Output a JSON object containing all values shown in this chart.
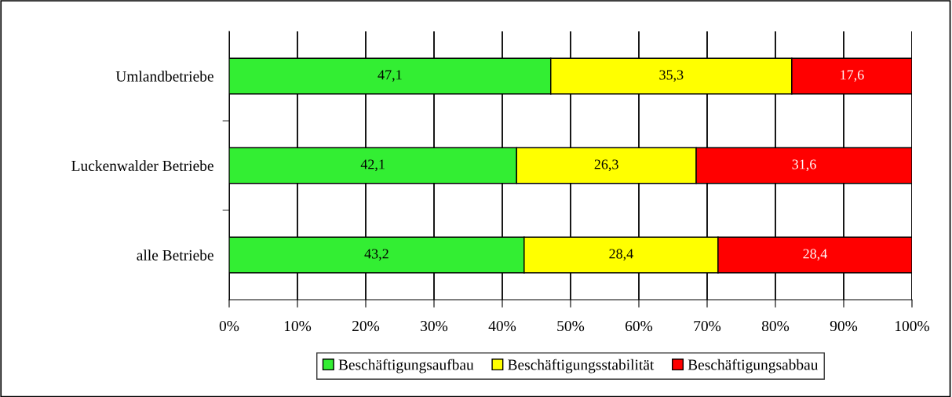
{
  "chart_data": {
    "type": "bar",
    "orientation": "horizontal",
    "stacked": true,
    "categories": [
      "Umlandbetriebe",
      "Luckenwalder Betriebe",
      "alle Betriebe"
    ],
    "series": [
      {
        "name": "Beschäftigungsaufbau",
        "color": "#33ee33",
        "values": [
          47.1,
          42.1,
          43.2
        ],
        "value_labels": [
          "47,1",
          "42,1",
          "43,2"
        ]
      },
      {
        "name": "Beschäftigungsstabilität",
        "color": "#ffff00",
        "values": [
          35.3,
          26.3,
          28.4
        ],
        "value_labels": [
          "35,3",
          "26,3",
          "28,4"
        ]
      },
      {
        "name": "Beschäftigungsabbau",
        "color": "#ff0000",
        "values": [
          17.6,
          31.6,
          28.4
        ],
        "value_labels": [
          "17,6",
          "31,6",
          "28,4"
        ]
      }
    ],
    "xlim": [
      0,
      100
    ],
    "xticks": [
      {
        "value": 0,
        "label": "0%"
      },
      {
        "value": 10,
        "label": "10%"
      },
      {
        "value": 20,
        "label": "20%"
      },
      {
        "value": 30,
        "label": "30%"
      },
      {
        "value": 40,
        "label": "40%"
      },
      {
        "value": 50,
        "label": "50%"
      },
      {
        "value": 60,
        "label": "60%"
      },
      {
        "value": 70,
        "label": "70%"
      },
      {
        "value": 80,
        "label": "80%"
      },
      {
        "value": 90,
        "label": "90%"
      },
      {
        "value": 100,
        "label": "100%"
      }
    ],
    "grid": "x",
    "legend": "bottom"
  }
}
